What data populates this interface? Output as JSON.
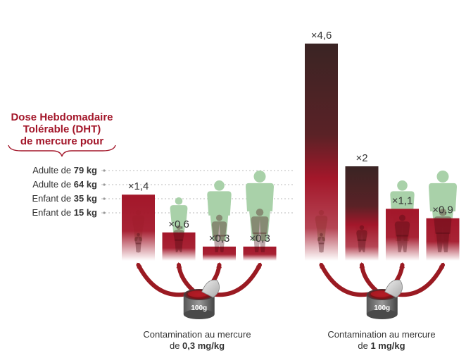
{
  "legend_title": {
    "line1": "Dose Hebdomadaire",
    "line2": "Tolérable (DHT)",
    "line3": "de mercure pour"
  },
  "colors": {
    "bar_red": "#a3172a",
    "bar_dark": "#3a2424",
    "silhouette": "#a9d1a9",
    "arrow": "#9a1a22",
    "title_red": "#a3172a"
  },
  "chart_data": [
    {
      "type": "bar",
      "reference_levels": [
        {
          "label": "Adulte de",
          "weight": "79 kg",
          "value": 1.0
        },
        {
          "label": "Adulte de",
          "weight": "64 kg",
          "value": 1.0
        },
        {
          "label": "Enfant de",
          "weight": "35 kg",
          "value": 1.0
        },
        {
          "label": "Enfant de",
          "weight": "15 kg",
          "value": 1.0
        }
      ],
      "groups": [
        {
          "caption_line1": "Contamination au mercure",
          "caption_prefix": "de ",
          "caption_bold": "0,3 mg/kg",
          "can_label": "100g",
          "bars": [
            {
              "person": "Enfant de 15 kg",
              "value": 1.4,
              "label": "×1,4"
            },
            {
              "person": "Enfant de 35 kg",
              "value": 0.6,
              "label": "×0,6"
            },
            {
              "person": "Adulte de 64 kg",
              "value": 0.3,
              "label": "×0,3"
            },
            {
              "person": "Adulte de 79 kg",
              "value": 0.3,
              "label": "×0,3"
            }
          ]
        },
        {
          "caption_line1": "Contamination au mercure",
          "caption_prefix": "de ",
          "caption_bold": "1 mg/kg",
          "can_label": "100g",
          "bars": [
            {
              "person": "Enfant de 15 kg",
              "value": 4.6,
              "label": "×4,6"
            },
            {
              "person": "Enfant de 35 kg",
              "value": 2,
              "label": "×2"
            },
            {
              "person": "Adulte de 64 kg",
              "value": 1.1,
              "label": "×1,1"
            },
            {
              "person": "Adulte de 79 kg",
              "value": 0.9,
              "label": "×0,9"
            }
          ]
        }
      ]
    }
  ]
}
